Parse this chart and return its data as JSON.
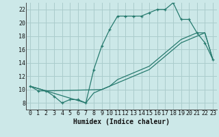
{
  "xlabel": "Humidex (Indice chaleur)",
  "bg_color": "#cce8e8",
  "line_color": "#267a6e",
  "grid_color": "#aacccc",
  "xlim": [
    -0.5,
    23.5
  ],
  "ylim": [
    7.0,
    23.0
  ],
  "xticks": [
    0,
    1,
    2,
    3,
    4,
    5,
    6,
    7,
    8,
    9,
    10,
    11,
    12,
    13,
    14,
    15,
    16,
    17,
    18,
    19,
    20,
    21,
    22,
    23
  ],
  "yticks": [
    8,
    10,
    12,
    14,
    16,
    18,
    20,
    22
  ],
  "line1_x": [
    0,
    1,
    2,
    3,
    4,
    5,
    6,
    7,
    8,
    9,
    10,
    11,
    12,
    13,
    14,
    15,
    16,
    17,
    18,
    19,
    20,
    21,
    22,
    23
  ],
  "line1_y": [
    10.5,
    9.8,
    9.8,
    9.0,
    8.0,
    8.5,
    8.5,
    8.0,
    13.0,
    16.5,
    19.0,
    21.0,
    21.0,
    21.0,
    21.0,
    21.5,
    22.0,
    22.0,
    23.0,
    20.5,
    20.5,
    18.5,
    17.0,
    14.5
  ],
  "line2_x": [
    0,
    2,
    7,
    8,
    9,
    10,
    11,
    12,
    13,
    14,
    15,
    16,
    17,
    18,
    19,
    20,
    21,
    22,
    23
  ],
  "line2_y": [
    10.5,
    9.8,
    8.0,
    9.5,
    10.0,
    10.5,
    11.0,
    11.5,
    12.0,
    12.5,
    13.0,
    14.0,
    15.0,
    16.0,
    17.0,
    17.5,
    18.0,
    18.5,
    14.5
  ],
  "line3_x": [
    0,
    2,
    9,
    10,
    11,
    12,
    13,
    14,
    15,
    16,
    17,
    18,
    19,
    20,
    21,
    22,
    23
  ],
  "line3_y": [
    10.5,
    9.8,
    10.0,
    10.5,
    11.5,
    12.0,
    12.5,
    13.0,
    13.5,
    14.5,
    15.5,
    16.5,
    17.5,
    18.0,
    18.5,
    18.5,
    14.5
  ],
  "xlabel_fontsize": 7,
  "tick_fontsize": 6
}
